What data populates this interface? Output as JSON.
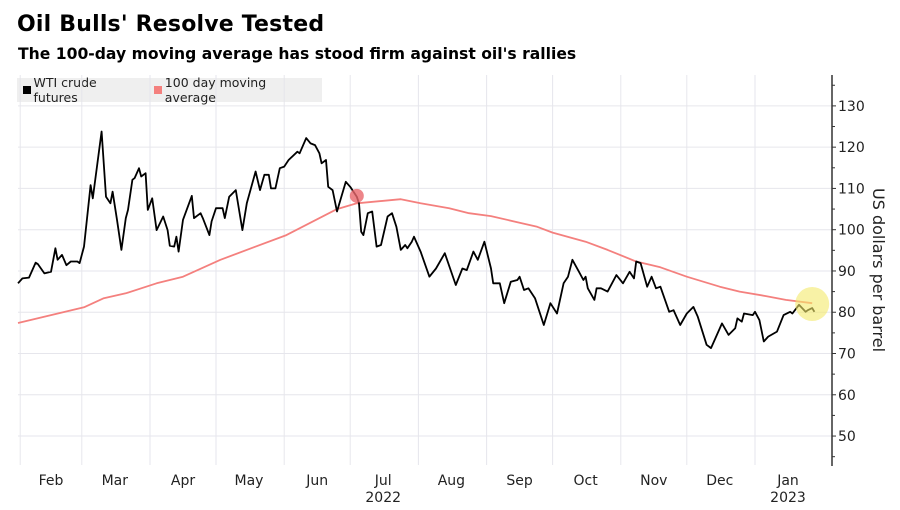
{
  "chart_data": {
    "type": "line",
    "title": "Oil Bulls' Resolve Tested",
    "subtitle": "The 100-day moving average has stood firm against oil's rallies",
    "ylabel": "US dollars per barrel",
    "xlabel": "",
    "ylim": [
      42.5,
      137
    ],
    "xlim": [
      "2022-01-31",
      "2023-01-31"
    ],
    "y_axis_side": "right",
    "y_ticks": [
      50,
      60,
      70,
      80,
      90,
      100,
      110,
      120,
      130
    ],
    "x_ticks": [
      {
        "label": "Feb",
        "date": "2022-02-15"
      },
      {
        "label": "Mar",
        "date": "2022-03-16"
      },
      {
        "label": "Apr",
        "date": "2022-04-16"
      },
      {
        "label": "May",
        "date": "2022-05-16"
      },
      {
        "label": "Jun",
        "date": "2022-06-16"
      },
      {
        "label": "Jul",
        "date": "2022-07-16",
        "year": "2022"
      },
      {
        "label": "Aug",
        "date": "2022-08-16"
      },
      {
        "label": "Sep",
        "date": "2022-09-16"
      },
      {
        "label": "Oct",
        "date": "2022-10-16"
      },
      {
        "label": "Nov",
        "date": "2022-11-16"
      },
      {
        "label": "Dec",
        "date": "2022-12-16"
      },
      {
        "label": "Jan",
        "date": "2023-01-16",
        "year": "2023"
      }
    ],
    "grid": true,
    "legend_position": "top-left",
    "series": [
      {
        "name": "WTI crude futures",
        "color": "#000000",
        "points": [
          [
            "2022-01-31",
            87.0
          ],
          [
            "2022-02-02",
            88.2
          ],
          [
            "2022-02-05",
            88.4
          ],
          [
            "2022-02-08",
            92.0
          ],
          [
            "2022-02-09",
            91.7
          ],
          [
            "2022-02-12",
            89.4
          ],
          [
            "2022-02-15",
            89.8
          ],
          [
            "2022-02-17",
            95.5
          ],
          [
            "2022-02-18",
            92.7
          ],
          [
            "2022-02-20",
            93.9
          ],
          [
            "2022-02-22",
            91.4
          ],
          [
            "2022-02-24",
            92.3
          ],
          [
            "2022-02-27",
            92.3
          ],
          [
            "2022-02-28",
            91.9
          ],
          [
            "2022-03-02",
            95.9
          ],
          [
            "2022-03-05",
            110.8
          ],
          [
            "2022-03-06",
            107.6
          ],
          [
            "2022-03-08",
            115.7
          ],
          [
            "2022-03-10",
            123.8
          ],
          [
            "2022-03-12",
            108.0
          ],
          [
            "2022-03-14",
            106.4
          ],
          [
            "2022-03-15",
            109.2
          ],
          [
            "2022-03-17",
            102.4
          ],
          [
            "2022-03-19",
            95.1
          ],
          [
            "2022-03-21",
            102.8
          ],
          [
            "2022-03-22",
            104.8
          ],
          [
            "2022-03-24",
            112.1
          ],
          [
            "2022-03-25",
            112.5
          ],
          [
            "2022-03-27",
            114.9
          ],
          [
            "2022-03-28",
            112.9
          ],
          [
            "2022-03-30",
            113.7
          ],
          [
            "2022-03-31",
            104.8
          ],
          [
            "2022-04-02",
            107.6
          ],
          [
            "2022-04-04",
            99.9
          ],
          [
            "2022-04-07",
            103.2
          ],
          [
            "2022-04-09",
            99.9
          ],
          [
            "2022-04-10",
            96.1
          ],
          [
            "2022-04-12",
            95.9
          ],
          [
            "2022-04-13",
            98.3
          ],
          [
            "2022-04-14",
            94.7
          ],
          [
            "2022-04-16",
            102.4
          ],
          [
            "2022-04-20",
            108.2
          ],
          [
            "2022-04-21",
            102.8
          ],
          [
            "2022-04-24",
            104.0
          ],
          [
            "2022-04-25",
            102.8
          ],
          [
            "2022-04-28",
            98.7
          ],
          [
            "2022-04-29",
            102.0
          ],
          [
            "2022-05-01",
            105.2
          ],
          [
            "2022-05-04",
            105.2
          ],
          [
            "2022-05-05",
            102.8
          ],
          [
            "2022-05-07",
            108.0
          ],
          [
            "2022-05-10",
            109.6
          ],
          [
            "2022-05-13",
            99.9
          ],
          [
            "2022-05-15",
            106.4
          ],
          [
            "2022-05-19",
            114.1
          ],
          [
            "2022-05-21",
            109.6
          ],
          [
            "2022-05-23",
            113.3
          ],
          [
            "2022-05-25",
            113.3
          ],
          [
            "2022-05-26",
            110.0
          ],
          [
            "2022-05-28",
            110.0
          ],
          [
            "2022-05-30",
            114.9
          ],
          [
            "2022-06-01",
            115.3
          ],
          [
            "2022-06-03",
            116.9
          ],
          [
            "2022-06-07",
            118.9
          ],
          [
            "2022-06-08",
            118.5
          ],
          [
            "2022-06-11",
            122.2
          ],
          [
            "2022-06-13",
            120.9
          ],
          [
            "2022-06-15",
            120.5
          ],
          [
            "2022-06-17",
            118.5
          ],
          [
            "2022-06-18",
            116.1
          ],
          [
            "2022-06-20",
            116.9
          ],
          [
            "2022-06-21",
            110.4
          ],
          [
            "2022-06-23",
            109.6
          ],
          [
            "2022-06-25",
            104.4
          ],
          [
            "2022-06-29",
            111.6
          ],
          [
            "2022-07-01",
            110.4
          ],
          [
            "2022-07-04",
            108.0
          ],
          [
            "2022-07-05",
            106.4
          ],
          [
            "2022-07-06",
            99.5
          ],
          [
            "2022-07-07",
            98.7
          ],
          [
            "2022-07-09",
            104.0
          ],
          [
            "2022-07-11",
            104.4
          ],
          [
            "2022-07-13",
            95.9
          ],
          [
            "2022-07-15",
            96.3
          ],
          [
            "2022-07-18",
            103.2
          ],
          [
            "2022-07-20",
            104.0
          ],
          [
            "2022-07-22",
            100.7
          ],
          [
            "2022-07-24",
            95.1
          ],
          [
            "2022-07-26",
            96.3
          ],
          [
            "2022-07-27",
            95.5
          ],
          [
            "2022-07-29",
            97.1
          ],
          [
            "2022-07-30",
            98.3
          ],
          [
            "2022-08-02",
            94.7
          ],
          [
            "2022-08-06",
            88.6
          ],
          [
            "2022-08-09",
            90.6
          ],
          [
            "2022-08-13",
            94.3
          ],
          [
            "2022-08-18",
            86.6
          ],
          [
            "2022-08-21",
            90.6
          ],
          [
            "2022-08-23",
            90.2
          ],
          [
            "2022-08-26",
            94.7
          ],
          [
            "2022-08-28",
            92.7
          ],
          [
            "2022-08-31",
            97.1
          ],
          [
            "2022-09-03",
            90.6
          ],
          [
            "2022-09-04",
            87.0
          ],
          [
            "2022-09-07",
            87.0
          ],
          [
            "2022-09-09",
            82.2
          ],
          [
            "2022-09-12",
            87.4
          ],
          [
            "2022-09-15",
            87.8
          ],
          [
            "2022-09-16",
            88.6
          ],
          [
            "2022-09-18",
            85.4
          ],
          [
            "2022-09-20",
            85.8
          ],
          [
            "2022-09-23",
            83.4
          ],
          [
            "2022-09-27",
            76.9
          ],
          [
            "2022-09-30",
            82.2
          ],
          [
            "2022-10-03",
            79.7
          ],
          [
            "2022-10-06",
            87.0
          ],
          [
            "2022-10-08",
            88.6
          ],
          [
            "2022-10-10",
            92.7
          ],
          [
            "2022-10-13",
            89.8
          ],
          [
            "2022-10-15",
            87.8
          ],
          [
            "2022-10-16",
            88.6
          ],
          [
            "2022-10-17",
            85.8
          ],
          [
            "2022-10-20",
            83.0
          ],
          [
            "2022-10-21",
            85.8
          ],
          [
            "2022-10-23",
            85.8
          ],
          [
            "2022-10-26",
            85.0
          ],
          [
            "2022-10-30",
            89.0
          ],
          [
            "2022-11-02",
            87.0
          ],
          [
            "2022-11-05",
            89.8
          ],
          [
            "2022-11-07",
            88.2
          ],
          [
            "2022-11-08",
            92.3
          ],
          [
            "2022-11-10",
            91.9
          ],
          [
            "2022-11-13",
            86.2
          ],
          [
            "2022-11-15",
            88.6
          ],
          [
            "2022-11-17",
            85.8
          ],
          [
            "2022-11-19",
            86.2
          ],
          [
            "2022-11-23",
            80.1
          ],
          [
            "2022-11-25",
            80.5
          ],
          [
            "2022-11-28",
            76.9
          ],
          [
            "2022-12-01",
            79.7
          ],
          [
            "2022-12-04",
            81.3
          ],
          [
            "2022-12-06",
            78.9
          ],
          [
            "2022-12-10",
            72.1
          ],
          [
            "2022-12-12",
            71.3
          ],
          [
            "2022-12-14",
            73.7
          ],
          [
            "2022-12-17",
            77.3
          ],
          [
            "2022-12-20",
            74.5
          ],
          [
            "2022-12-23",
            76.1
          ],
          [
            "2022-12-24",
            78.5
          ],
          [
            "2022-12-26",
            77.7
          ],
          [
            "2022-12-27",
            79.7
          ],
          [
            "2022-12-31",
            79.3
          ],
          [
            "2023-01-01",
            80.1
          ],
          [
            "2023-01-03",
            78.1
          ],
          [
            "2023-01-05",
            72.9
          ],
          [
            "2023-01-07",
            74.1
          ],
          [
            "2023-01-11",
            75.3
          ],
          [
            "2023-01-14",
            79.3
          ],
          [
            "2023-01-17",
            80.1
          ],
          [
            "2023-01-18",
            79.7
          ],
          [
            "2023-01-21",
            81.8
          ],
          [
            "2023-01-24",
            80.1
          ],
          [
            "2023-01-25",
            80.5
          ],
          [
            "2023-01-27",
            81.0
          ],
          [
            "2023-01-28",
            80.1
          ]
        ]
      },
      {
        "name": "100 day moving average",
        "color": "#f4807e",
        "points": [
          [
            "2022-01-31",
            77.4
          ],
          [
            "2022-02-15",
            79.3
          ],
          [
            "2022-03-02",
            81.2
          ],
          [
            "2022-03-11",
            83.4
          ],
          [
            "2022-03-21",
            84.6
          ],
          [
            "2022-04-04",
            87.0
          ],
          [
            "2022-04-16",
            88.6
          ],
          [
            "2022-05-03",
            92.7
          ],
          [
            "2022-06-02",
            98.7
          ],
          [
            "2022-06-25",
            105.0
          ],
          [
            "2022-07-04",
            106.4
          ],
          [
            "2022-07-24",
            107.4
          ],
          [
            "2022-08-02",
            106.4
          ],
          [
            "2022-08-15",
            105.2
          ],
          [
            "2022-08-24",
            104.0
          ],
          [
            "2022-09-03",
            103.3
          ],
          [
            "2022-09-16",
            101.7
          ],
          [
            "2022-09-24",
            100.7
          ],
          [
            "2022-10-01",
            99.3
          ],
          [
            "2022-10-16",
            97.1
          ],
          [
            "2022-10-26",
            95.1
          ],
          [
            "2022-11-08",
            92.3
          ],
          [
            "2022-11-19",
            90.9
          ],
          [
            "2022-12-01",
            88.6
          ],
          [
            "2022-12-16",
            86.2
          ],
          [
            "2022-12-25",
            85.0
          ],
          [
            "2023-01-06",
            83.9
          ],
          [
            "2023-01-15",
            83.0
          ],
          [
            "2023-01-27",
            82.2
          ]
        ]
      }
    ],
    "highlights": [
      {
        "date": "2022-07-04",
        "value": 108.2,
        "color": "#e8676b"
      },
      {
        "date": "2023-01-27",
        "value": 82.0,
        "color": "#f3ea6a"
      }
    ]
  }
}
